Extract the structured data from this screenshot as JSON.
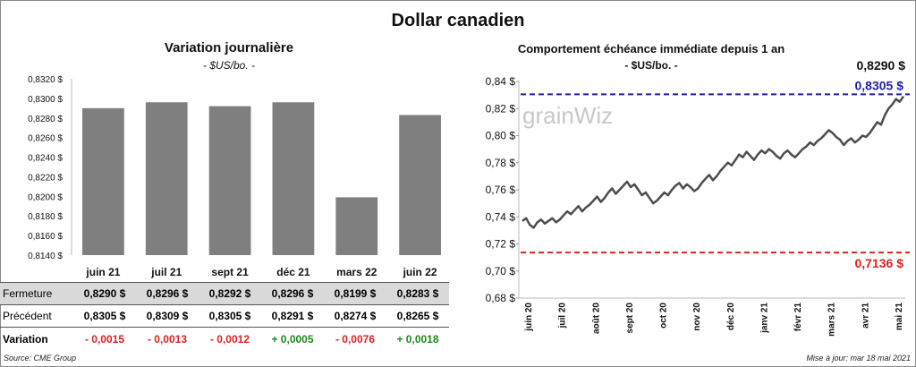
{
  "title": "Dollar canadien",
  "left": {
    "title": "Variation  journalière",
    "subtitle": "- $US/bo. -"
  },
  "right": {
    "title": "Comportement échéance immédiate depuis 1 an",
    "subtitle": "- $US/bo. -",
    "last_value": "0,8290 $",
    "high_label": "0,8305 $",
    "low_label": "0,7136 $"
  },
  "watermark": "grainWiz",
  "table": {
    "rows": [
      {
        "label": "Fermeture",
        "values": [
          "0,8290 $",
          "0,8296 $",
          "0,8292 $",
          "0,8296 $",
          "0,8199 $",
          "0,8283 $"
        ]
      },
      {
        "label": "Précédent",
        "values": [
          "0,8305 $",
          "0,8309 $",
          "0,8305 $",
          "0,8291 $",
          "0,8274 $",
          "0,8265 $"
        ]
      },
      {
        "label": "Variation",
        "values": [
          "- 0,0015",
          "- 0,0013",
          "- 0,0012",
          "+ 0,0005",
          "- 0,0076",
          "+ 0,0018"
        ]
      }
    ]
  },
  "footer": {
    "source": "Source: CME Group",
    "updated": "Mise à jour: mar 18 mai 2021"
  },
  "colors": {
    "bar": "#7f7f7f",
    "line": "#4d4d4d",
    "high": "#1f1fa8",
    "low": "#e02020",
    "pos": "#1a8a1a",
    "neg": "#e02020"
  },
  "chart_data": [
    {
      "type": "bar",
      "title": "Variation  journalière",
      "subtitle": "- $US/bo. -",
      "categories": [
        "juin 21",
        "juil 21",
        "sept 21",
        "déc 21",
        "mars 22",
        "juin 22"
      ],
      "values": [
        0.829,
        0.8296,
        0.8292,
        0.8296,
        0.8199,
        0.8283
      ],
      "ylim": [
        0.814,
        0.832
      ],
      "yticks": [
        "0,8140 $",
        "0,8160 $",
        "0,8180 $",
        "0,8200 $",
        "0,8220 $",
        "0,8240 $",
        "0,8260 $",
        "0,8280 $",
        "0,8300 $",
        "0,8320 $"
      ],
      "grid": false
    },
    {
      "type": "line",
      "title": "Comportement échéance immédiate depuis 1 an",
      "subtitle": "- $US/bo. -",
      "ylim": [
        0.68,
        0.84
      ],
      "yticks": [
        "0,68 $",
        "0,70 $",
        "0,72 $",
        "0,74 $",
        "0,76 $",
        "0,78 $",
        "0,80 $",
        "0,82 $",
        "0,84 $"
      ],
      "xticks": [
        "juin 20",
        "juil 20",
        "août 20",
        "sept 20",
        "oct 20",
        "nov 20",
        "déc 20",
        "janv 21",
        "févr 21",
        "mars 21",
        "avr 21",
        "mai 21"
      ],
      "reference_lines": [
        {
          "value": 0.8305,
          "label": "0,8305 $",
          "color": "#1f1fa8",
          "style": "dashed"
        },
        {
          "value": 0.7136,
          "label": "0,7136 $",
          "color": "#e02020",
          "style": "dashed"
        }
      ],
      "series": [
        {
          "values": [
            0.737,
            0.739,
            0.734,
            0.732,
            0.736,
            0.738,
            0.735,
            0.737,
            0.739,
            0.736,
            0.738,
            0.741,
            0.744,
            0.742,
            0.745,
            0.748,
            0.744,
            0.747,
            0.749,
            0.752,
            0.755,
            0.751,
            0.754,
            0.758,
            0.761,
            0.757,
            0.76,
            0.763,
            0.766,
            0.762,
            0.764,
            0.76,
            0.756,
            0.758,
            0.754,
            0.75,
            0.752,
            0.755,
            0.758,
            0.756,
            0.76,
            0.763,
            0.765,
            0.761,
            0.764,
            0.762,
            0.759,
            0.761,
            0.765,
            0.768,
            0.771,
            0.767,
            0.77,
            0.774,
            0.777,
            0.78,
            0.778,
            0.782,
            0.786,
            0.784,
            0.788,
            0.785,
            0.782,
            0.786,
            0.789,
            0.787,
            0.79,
            0.788,
            0.785,
            0.783,
            0.787,
            0.789,
            0.786,
            0.784,
            0.787,
            0.79,
            0.792,
            0.795,
            0.793,
            0.796,
            0.798,
            0.801,
            0.804,
            0.802,
            0.799,
            0.797,
            0.793,
            0.796,
            0.798,
            0.795,
            0.797,
            0.8,
            0.799,
            0.802,
            0.806,
            0.81,
            0.808,
            0.815,
            0.82,
            0.823,
            0.827,
            0.825,
            0.829
          ]
        }
      ],
      "last_value": "0,8290 $"
    }
  ]
}
